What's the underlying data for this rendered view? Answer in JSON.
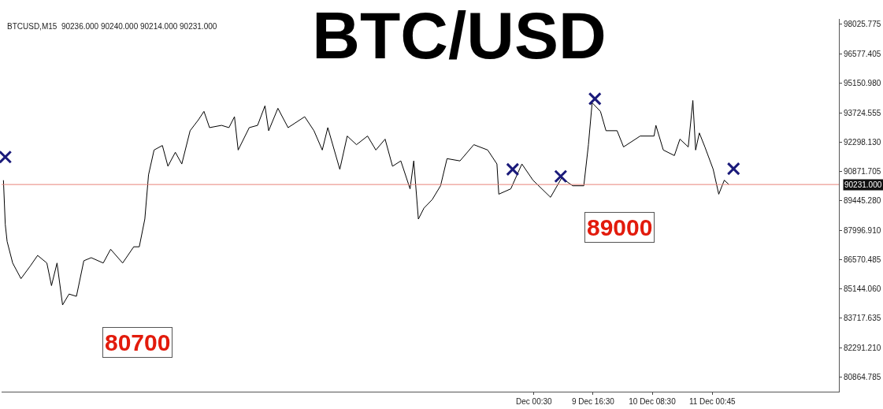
{
  "chart_data": {
    "type": "line",
    "title": "BTC/USD",
    "subtitle": "BTCUSD,M15  90236.000 90240.000 90214.000 90231.000",
    "series": [
      {
        "color": "#000000",
        "marker": "none",
        "x": [
          "--12-03T01:00",
          "--12-03T01:30",
          "--12-03T02:00",
          "--12-03T03:30",
          "--12-03T05:45",
          "--12-03T08:15",
          "--12-03T10:15",
          "--12-03T12:45",
          "--12-03T14:00",
          "--12-03T15:30",
          "--12-03T17:00",
          "--12-03T18:45",
          "--12-03T20:45",
          "--12-03T22:45",
          "--12-04T00:45",
          "--12-04T04:00",
          "--12-04T06:00",
          "--12-04T09:15",
          "--12-04T12:15",
          "--12-04T13:45",
          "--12-04T15:15",
          "--12-04T16:15",
          "--12-04T17:45",
          "--12-04T20:00",
          "--12-04T21:30",
          "--12-04T23:30",
          "--12-05T01:15",
          "--12-05T03:30",
          "--12-05T05:45",
          "--12-05T07:15",
          "--12-05T08:45",
          "--12-05T12:00",
          "--12-05T14:00",
          "--12-05T15:30",
          "--12-05T16:30",
          "--12-05T19:30",
          "--12-05T21:45",
          "--12-05T23:45",
          "--12-06T00:45",
          "--12-06T03:15",
          "--12-06T06:00",
          "--12-06T10:30",
          "--12-06T13:00",
          "--12-06T15:15",
          "--12-06T16:45",
          "--12-06T20:00",
          "--12-06T22:00",
          "--12-07T00:30",
          "--12-07T03:30",
          "--12-07T05:45",
          "--12-07T08:15",
          "--12-07T10:15",
          "--12-07T12:30",
          "--12-07T15:00",
          "--12-07T16:00",
          "--12-07T17:15",
          "--12-07T18:45",
          "--12-07T21:00",
          "--12-07T23:15",
          "--12-08T01:00",
          "--12-08T04:30",
          "--12-08T08:15",
          "--12-08T12:00",
          "--12-08T14:30",
          "--12-08T15:00",
          "--12-08T18:15",
          "--12-08T21:15",
          "--12-09T00:15",
          "--12-09T05:00",
          "--12-09T08:00",
          "--12-09T11:00",
          "--12-09T14:00",
          "--12-09T15:15",
          "--12-09T16:15",
          "--12-09T18:30",
          "--12-09T20:00",
          "--12-09T23:00",
          "--12-10T00:45",
          "--12-10T05:15",
          "--12-10T09:00",
          "--12-10T09:30",
          "--12-10T11:30",
          "--12-10T14:30",
          "--12-10T16:00",
          "--12-10T18:15",
          "--12-10T19:30",
          "--12-10T20:15",
          "--12-10T21:15",
          "--12-10T22:45",
          "--12-11T01:00",
          "--12-11T02:30",
          "--12-11T04:00",
          "--12-11T05:15"
        ],
        "values": [
          90440,
          88290,
          87460,
          86410,
          85650,
          86260,
          86780,
          86410,
          85310,
          86410,
          84370,
          84900,
          84790,
          86520,
          86670,
          86410,
          87080,
          86410,
          87200,
          87200,
          88550,
          90700,
          91910,
          92130,
          91120,
          91800,
          91230,
          92850,
          93380,
          93790,
          93000,
          93110,
          93000,
          93530,
          91910,
          93000,
          93110,
          94060,
          92850,
          93940,
          93000,
          93530,
          92850,
          91910,
          93000,
          90970,
          92590,
          92170,
          92590,
          91910,
          92440,
          91120,
          91380,
          90020,
          91380,
          88550,
          89080,
          89500,
          90170,
          91490,
          91380,
          92170,
          91910,
          91230,
          89760,
          90020,
          91230,
          90440,
          89610,
          90550,
          90170,
          90170,
          92170,
          94210,
          93790,
          92850,
          92850,
          92060,
          92590,
          92590,
          93110,
          91910,
          91640,
          92440,
          92060,
          94320,
          91910,
          92740,
          92060,
          90970,
          89760,
          90440,
          90231
        ]
      },
      {
        "type": "scatter",
        "color": "#1a1a7a",
        "marker": "cross",
        "x": [
          "--12-03T01:30",
          "--12-08T18:45",
          "--12-09T07:45",
          "--12-09T17:00",
          "--12-11T06:30"
        ],
        "values": [
          91570,
          90970,
          90630,
          94400,
          91000
        ]
      }
    ],
    "xlim": [
      "--12-03T00:30",
      "--12-12T11:00"
    ],
    "xticks": [
      {
        "value": "--12-09T00:30",
        "label": "Dec 00:30"
      },
      {
        "value": "--12-09T16:30",
        "label": "9 Dec 16:30"
      },
      {
        "value": "--12-10T08:30",
        "label": "10 Dec 08:30"
      },
      {
        "value": "--12-11T00:45",
        "label": "11 Dec 00:45"
      }
    ],
    "ylim": [
      80150,
      98290
    ],
    "yticks": [
      98025.775,
      96577.405,
      {
        "value": 95150.98,
        "label": "95150.980"
      },
      93724.555,
      {
        "value": 92298.13,
        "label": "92298.130"
      },
      90871.705,
      {
        "value": 89445.28,
        "label": "89445.280"
      },
      {
        "value": 87996.91,
        "label": "87996.910"
      },
      86570.485,
      {
        "value": 85144.06,
        "label": "85144.060"
      },
      83717.635,
      {
        "value": 82291.21,
        "label": "82291.210"
      },
      80864.785
    ],
    "ref_lines": [
      {
        "axis": "y",
        "value": 90231,
        "label": "90231.000",
        "color": "#e8837a"
      }
    ],
    "annotations": [
      "80700",
      "89000"
    ]
  }
}
